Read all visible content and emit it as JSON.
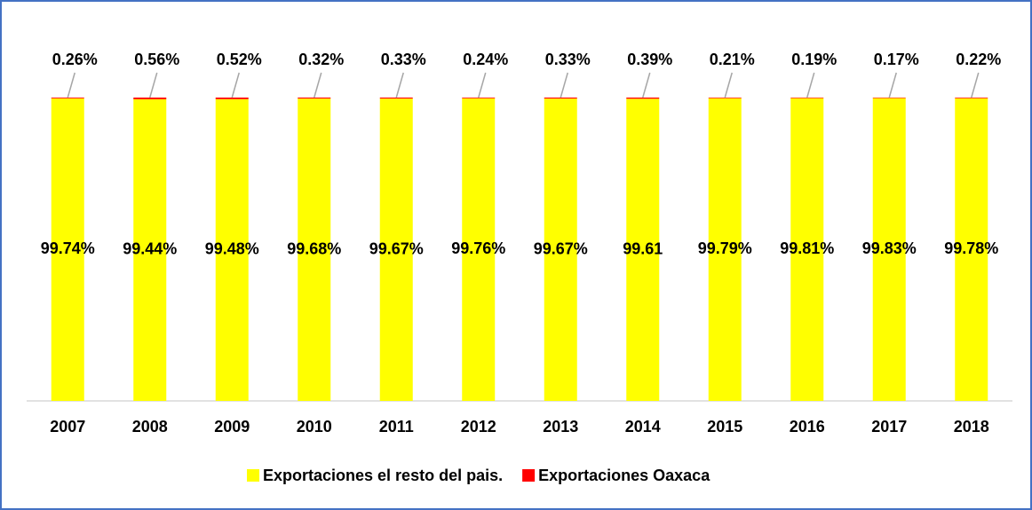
{
  "chart_data": {
    "type": "stacked_bar",
    "categories": [
      "2007",
      "2008",
      "2009",
      "2010",
      "2011",
      "2012",
      "2013",
      "2014",
      "2015",
      "2016",
      "2017",
      "2018"
    ],
    "series": [
      {
        "name": "Exportaciones el resto del pais.",
        "color": "#ffff00",
        "values": [
          99.74,
          99.44,
          99.48,
          99.68,
          99.67,
          99.76,
          99.67,
          99.61,
          99.79,
          99.81,
          99.83,
          99.78
        ],
        "value_labels": [
          "99.74%",
          "99.44%",
          "99.48%",
          "99.68%",
          "99.67%",
          "99.76%",
          "99.67%",
          "99.61",
          "99.79%",
          "99.81%",
          "99.83%",
          "99.78%"
        ]
      },
      {
        "name": "Exportaciones Oaxaca",
        "color": "#ff0000",
        "values": [
          0.26,
          0.56,
          0.52,
          0.32,
          0.33,
          0.24,
          0.33,
          0.39,
          0.21,
          0.19,
          0.17,
          0.22
        ],
        "value_labels": [
          "0.26%",
          "0.56%",
          "0.52%",
          "0.32%",
          "0.33%",
          "0.24%",
          "0.33%",
          "0.39%",
          "0.21%",
          "0.19%",
          "0.17%",
          "0.22%"
        ]
      }
    ],
    "ylim": [
      0,
      100
    ],
    "legend": "bottom"
  }
}
